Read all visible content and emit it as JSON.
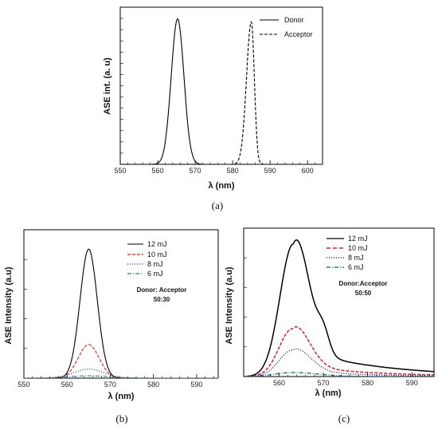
{
  "chart_data": [
    {
      "panel": "(a)",
      "type": "line",
      "xlabel": "λ (nm)",
      "ylabel": "ASE int. (a. u)",
      "xlim": [
        550,
        604
      ],
      "ylim": [
        0,
        1.08
      ],
      "xticks": [
        550,
        560,
        570,
        580,
        590,
        600
      ],
      "legend_position": "top-right",
      "grid": false,
      "series": [
        {
          "name": "Donor",
          "style": "solid",
          "color": "#000000",
          "peak": 565.3,
          "amplitude": 1.0,
          "sigma_left": 1.7,
          "sigma_right": 1.7
        },
        {
          "name": "Acceptor",
          "style": "dashed",
          "color": "#000000",
          "peak": 585.0,
          "amplitude": 0.98,
          "sigma_left": 1.3,
          "sigma_right": 0.8
        }
      ]
    },
    {
      "panel": "(b)",
      "type": "line",
      "xlabel": "λ (nm)",
      "ylabel": "ASE Intensity (a.u)",
      "xlim": [
        550,
        595
      ],
      "ylim": [
        0,
        1.15
      ],
      "xticks": [
        550,
        560,
        570,
        580,
        590
      ],
      "legend_position": "top-right",
      "annotation": [
        "Donor: Acceptor",
        "50:30"
      ],
      "grid": false,
      "series": [
        {
          "name": "12 mJ",
          "style": "solid",
          "color": "#000000",
          "peak": 565.0,
          "amplitude": 1.0,
          "sigma_left": 2.0,
          "sigma_right": 2.0
        },
        {
          "name": "10 mJ",
          "style": "dashed",
          "color": "#e8191c",
          "peak": 565.0,
          "amplitude": 0.26,
          "sigma_left": 2.4,
          "sigma_right": 2.4
        },
        {
          "name": "8 mJ",
          "style": "dotted",
          "color": "#1a1ab8",
          "peak": 565.0,
          "amplitude": 0.07,
          "sigma_left": 3.5,
          "sigma_right": 3.5
        },
        {
          "name": "6 mJ",
          "style": "dashdot",
          "color": "#1a8a7a",
          "peak": 565.0,
          "amplitude": 0.018,
          "sigma_left": 5.0,
          "sigma_right": 5.0
        }
      ]
    },
    {
      "panel": "(c)",
      "type": "line",
      "xlabel": "λ (nm)",
      "ylabel": "ASE Intensity (a.u)",
      "xlim": [
        552,
        595
      ],
      "ylim": [
        0,
        1.12
      ],
      "xticks": [
        560,
        570,
        580,
        590
      ],
      "legend_position": "top-right",
      "annotation": [
        "Donor:Acceptor",
        "50:50"
      ],
      "grid": false,
      "series": [
        {
          "name": "12 mJ",
          "style": "solid",
          "color": "#000000",
          "peak": 563.2,
          "amplitude": 1.0,
          "sigma_left": 3.0,
          "sigma_right": 3.4,
          "shoulder": {
            "center": 570.0,
            "amplitude": 0.14,
            "sigma": 1.3
          },
          "tail": {
            "amplitude": 0.22,
            "decay": 18,
            "floor": 0.0
          }
        },
        {
          "name": "10 mJ",
          "style": "dashed",
          "color": "#e8191c",
          "peak": 563.0,
          "amplitude": 0.36,
          "sigma_left": 3.0,
          "sigma_right": 3.6,
          "tail": {
            "amplitude": 0.09,
            "decay": 16,
            "floor": 0.0
          }
        },
        {
          "name": "8 mJ",
          "style": "dotted",
          "color": "#1a1ab8",
          "peak": 563.0,
          "amplitude": 0.2,
          "sigma_left": 3.0,
          "sigma_right": 3.8,
          "tail": {
            "amplitude": 0.05,
            "decay": 14,
            "floor": 0.0
          }
        },
        {
          "name": "6 mJ",
          "style": "dashdot",
          "color": "#1a8a7a",
          "peak": 563.0,
          "amplitude": 0.03,
          "sigma_left": 4.0,
          "sigma_right": 6.0
        }
      ]
    }
  ]
}
